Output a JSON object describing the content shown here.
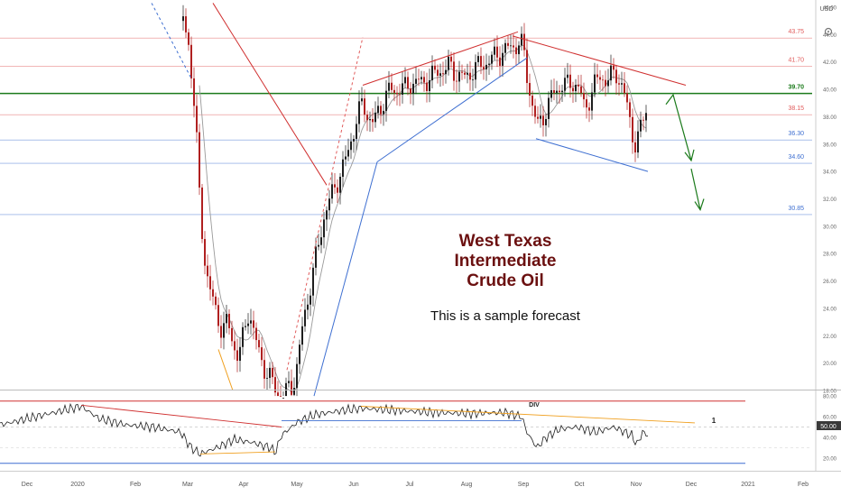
{
  "chart_data": {
    "type": "candlestick",
    "currency": "USD",
    "x_ticks": [
      "Dec",
      "2020",
      "Feb",
      "Mar",
      "Apr",
      "May",
      "Jun",
      "Jul",
      "Aug",
      "Sep",
      "Oct",
      "Nov",
      "Dec",
      "2021",
      "Feb"
    ],
    "price_ticks": [
      "46.00",
      "44.00",
      "42.00",
      "40.00",
      "38.00",
      "36.00",
      "34.00",
      "32.00",
      "30.00",
      "28.00",
      "26.00",
      "24.00",
      "22.00",
      "20.00",
      "18.00"
    ],
    "levels": [
      {
        "value": 43.75,
        "label": "43.75",
        "color": "#e05a5a"
      },
      {
        "value": 41.7,
        "label": "41.70",
        "color": "#e05a5a"
      },
      {
        "value": 39.7,
        "label": "39.70",
        "color": "#1b7a1b"
      },
      {
        "value": 38.15,
        "label": "38.15",
        "color": "#e05a5a"
      },
      {
        "value": 36.3,
        "label": "36.30",
        "color": "#3e6fd1"
      },
      {
        "value": 34.6,
        "label": "34.60",
        "color": "#3e6fd1"
      },
      {
        "value": 30.85,
        "label": "30.85",
        "color": "#3e6fd1"
      }
    ],
    "annotation": {
      "title_lines": [
        "West Texas",
        "Intermediate",
        "Crude Oil"
      ],
      "subtitle": "This is a sample forecast"
    },
    "oscillator": {
      "ticks": [
        "80.00",
        "60.00",
        "50.00",
        "40.00",
        "20.00"
      ],
      "current_value": "50.00",
      "div_label": "DIV",
      "wave_label": "1"
    },
    "colors": {
      "up": "#1e1e1e",
      "down": "#b02020",
      "ma": "#9a9a9a",
      "title": "#6b1010",
      "forecast": "#1b7a1b"
    }
  }
}
